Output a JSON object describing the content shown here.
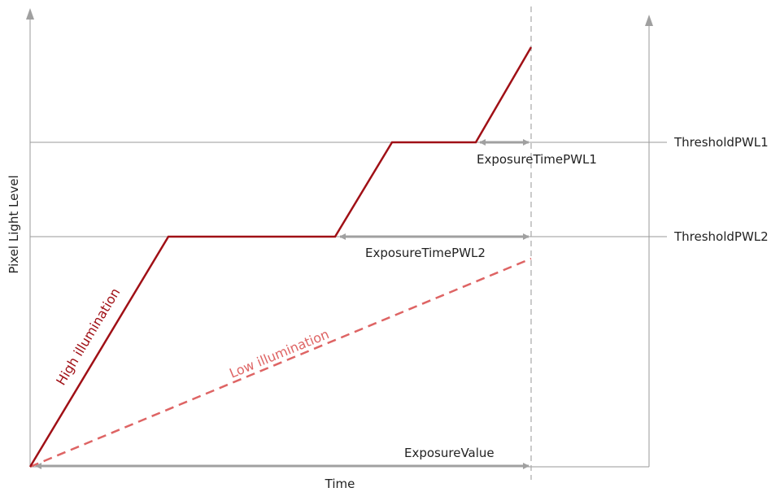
{
  "labels": {
    "y_axis": "Pixel Light  Level",
    "x_axis": "Time",
    "threshold1": "ThresholdPWL1",
    "threshold2": "ThresholdPWL2",
    "exposure_pwl1": "ExposureTimePWL1",
    "exposure_pwl2": "ExposureTimePWL2",
    "exposure_value": "ExposureValue",
    "high_illumination": "High illumination",
    "low_illumination": "Low illumination"
  },
  "colors": {
    "axis": "#9a9a9a",
    "threshold_line": "#9a9a9a",
    "arrow": "#a0a0a0",
    "high_curve": "#a01016",
    "low_curve": "#de6464",
    "text": "#222222"
  }
}
